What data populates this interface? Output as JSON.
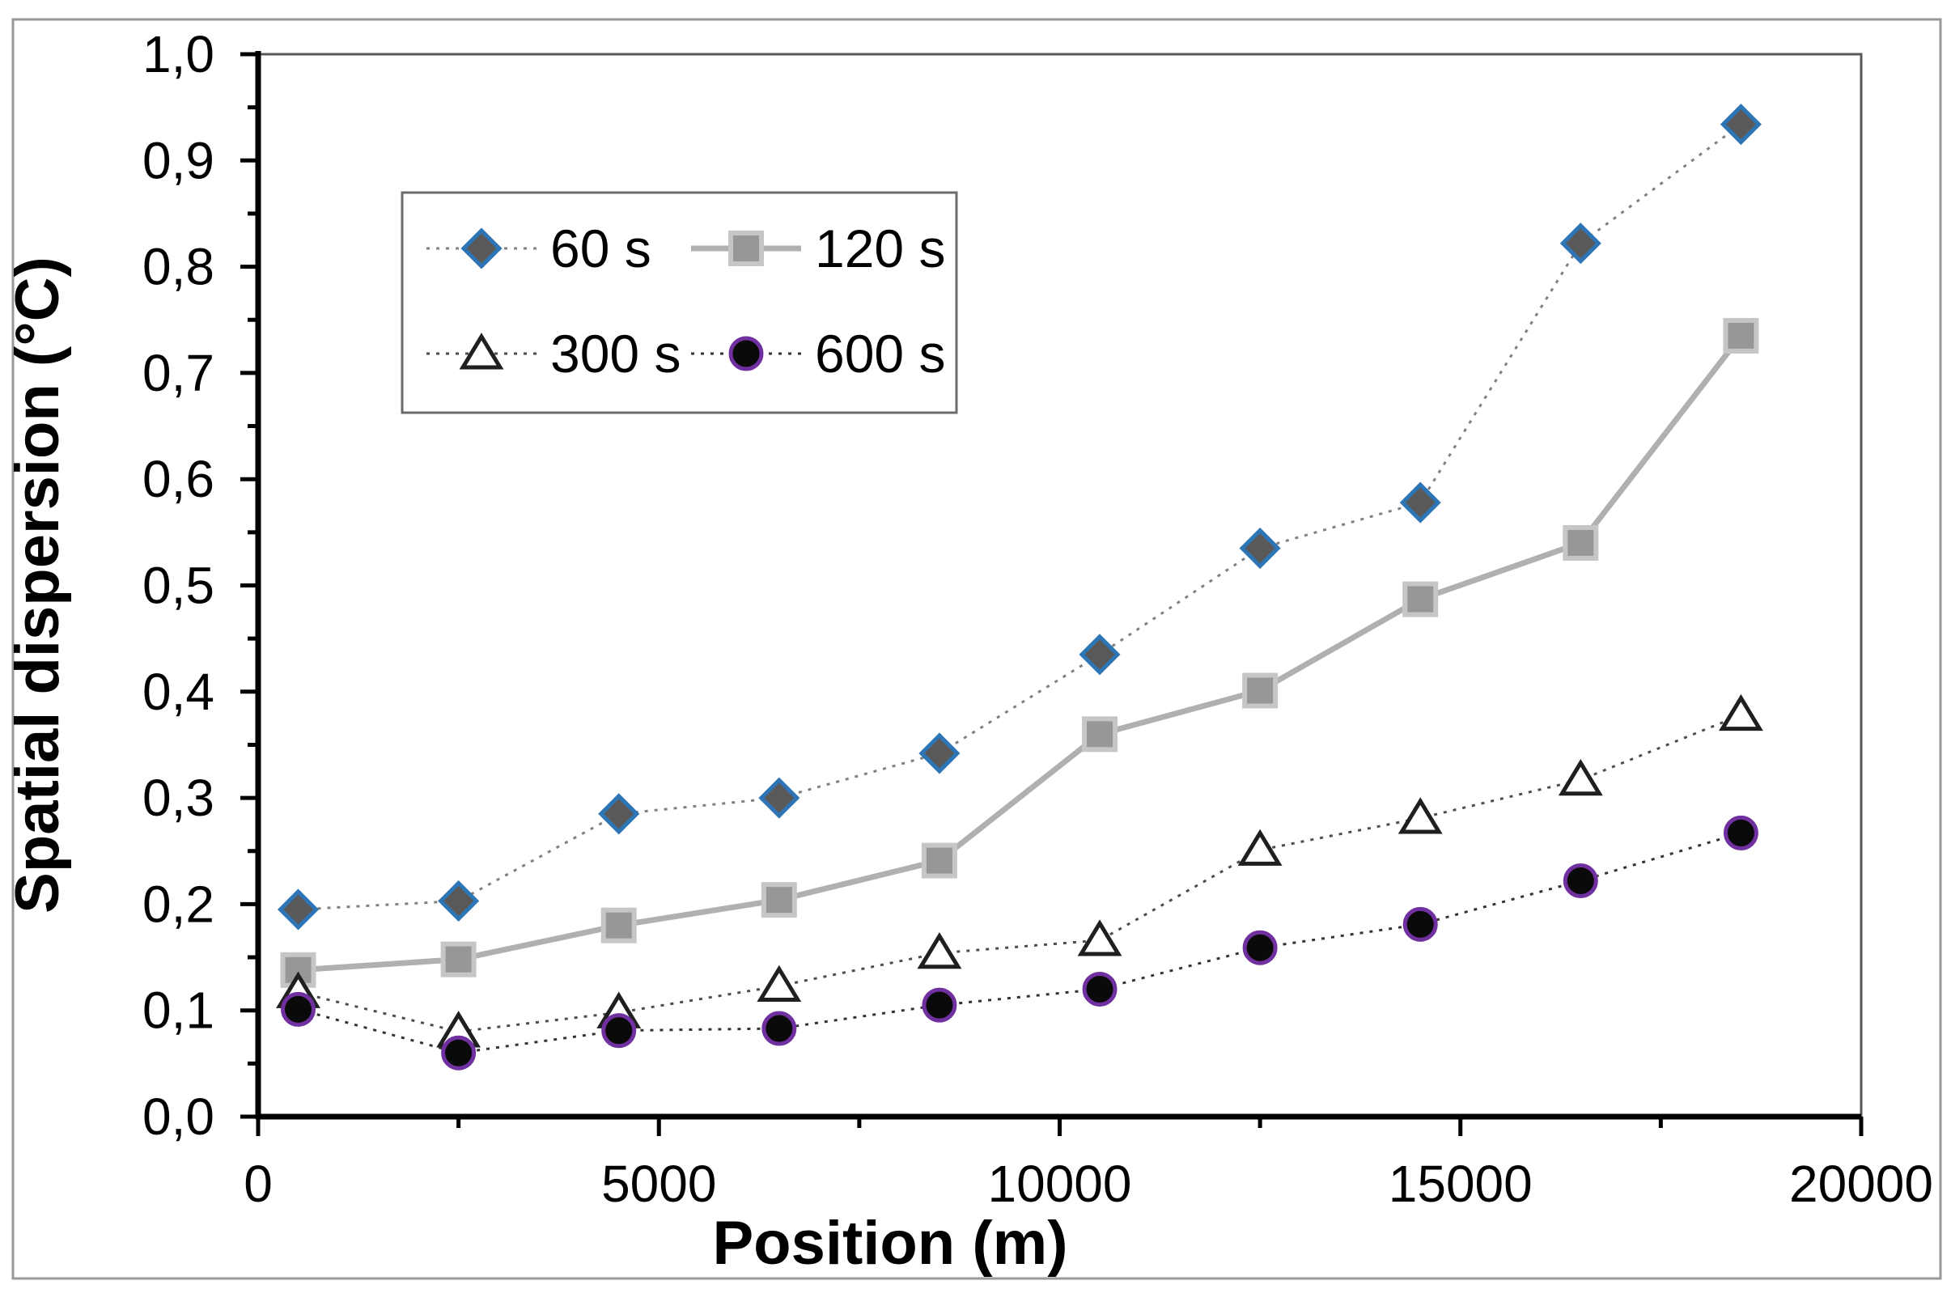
{
  "figure": {
    "background": "#ffffff",
    "outer_border_color": "#999999",
    "plot_border_color": "#595959",
    "axis_color": "#000000"
  },
  "chart_data": {
    "type": "line",
    "title": "",
    "xlabel": "Position (m)",
    "ylabel": "Spatial dispersion (°C)",
    "xlim": [
      0,
      20000
    ],
    "ylim": [
      0.0,
      1.0
    ],
    "grid": false,
    "legend_position": "upper-left-inside",
    "decimal_separator": ",",
    "x_tick_labels": [
      "0",
      "5000",
      "10000",
      "15000",
      "20000"
    ],
    "x_major_ticks": [
      0,
      5000,
      10000,
      15000,
      20000
    ],
    "x_minor_ticks": [
      2500,
      7500,
      12500,
      17500
    ],
    "y_tick_labels": [
      "0,0",
      "0,1",
      "0,2",
      "0,3",
      "0,4",
      "0,5",
      "0,6",
      "0,7",
      "0,8",
      "0,9",
      "1,0"
    ],
    "y_major_ticks": [
      0.0,
      0.1,
      0.2,
      0.3,
      0.4,
      0.5,
      0.6,
      0.7,
      0.8,
      0.9,
      1.0
    ],
    "y_minor_step": 0.05,
    "x": [
      500,
      2500,
      4500,
      6500,
      8500,
      10500,
      12500,
      14500,
      16500,
      18500
    ],
    "series": [
      {
        "name": "60 s",
        "marker": "diamond",
        "marker_fill": "#595959",
        "marker_stroke": "#2E75B6",
        "line_style": "dotted",
        "line_color": "#808080",
        "values": [
          0.195,
          0.203,
          0.285,
          0.3,
          0.342,
          0.435,
          0.535,
          0.578,
          0.822,
          0.934
        ]
      },
      {
        "name": "120 s",
        "marker": "square",
        "marker_fill": "#979797",
        "marker_stroke": "#C6C6C6",
        "line_style": "solid",
        "line_color": "#B0B0B0",
        "values": [
          0.138,
          0.148,
          0.18,
          0.204,
          0.241,
          0.36,
          0.401,
          0.487,
          0.54,
          0.735
        ]
      },
      {
        "name": "300 s",
        "marker": "triangle",
        "marker_fill": "#FFFFFF",
        "marker_stroke": "#1F1F1F",
        "line_style": "dotted",
        "line_color": "#4D4D4D",
        "values": [
          0.117,
          0.08,
          0.098,
          0.123,
          0.154,
          0.166,
          0.251,
          0.281,
          0.317,
          0.378
        ]
      },
      {
        "name": "600 s",
        "marker": "circle",
        "marker_fill": "#0A0A0A",
        "marker_stroke": "#7030A0",
        "line_style": "dotted",
        "line_color": "#333333",
        "values": [
          0.101,
          0.06,
          0.081,
          0.083,
          0.105,
          0.12,
          0.159,
          0.181,
          0.222,
          0.267
        ]
      }
    ]
  }
}
